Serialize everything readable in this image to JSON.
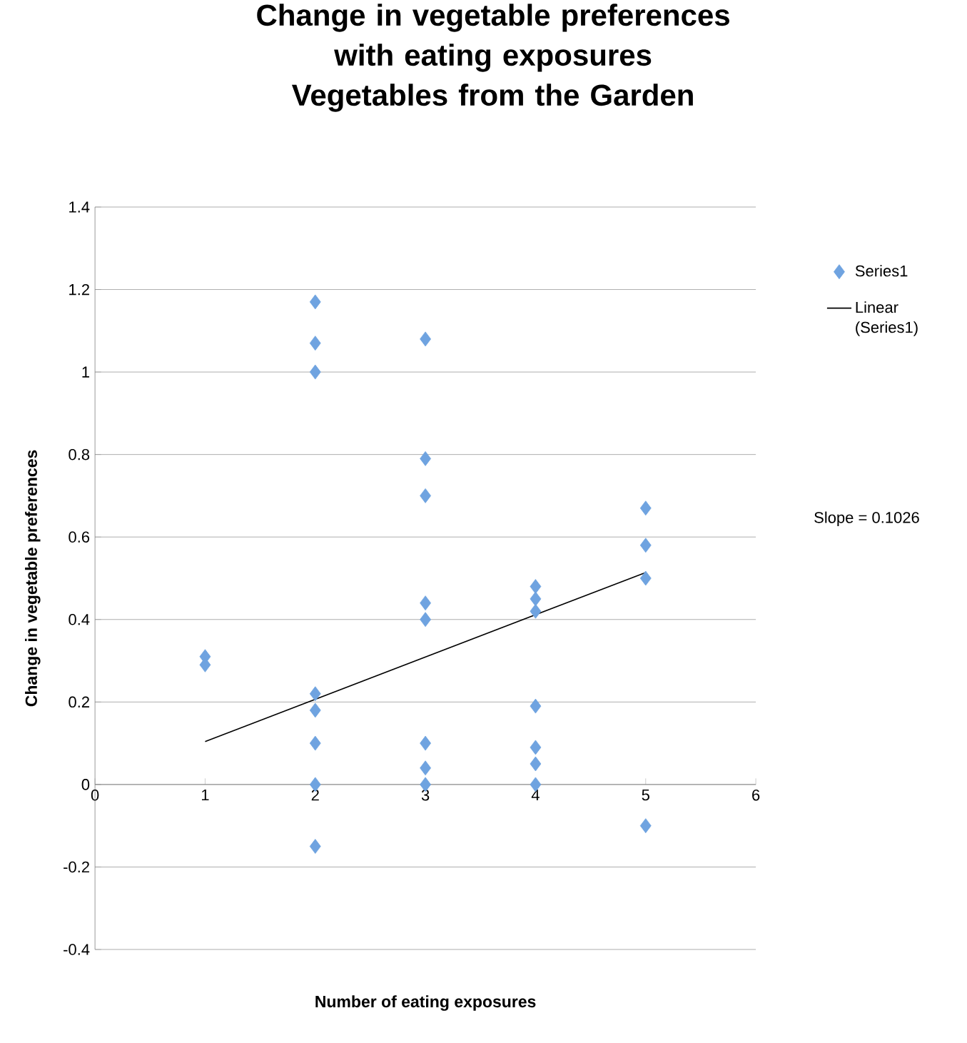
{
  "chart_data": {
    "type": "scatter",
    "title": "Change in vegetable preferences with eating exposures",
    "subtitle": "Vegetables from the Garden",
    "xlabel": "Number of eating exposures",
    "ylabel": "Change in vegetable preferences",
    "xlim": [
      0,
      6
    ],
    "xticks": [
      0,
      1,
      2,
      3,
      4,
      5,
      6
    ],
    "ylim": [
      -0.4,
      1.4
    ],
    "yticks": [
      -0.4,
      -0.2,
      0,
      0.2,
      0.4,
      0.6,
      0.8,
      1,
      1.2,
      1.4
    ],
    "grid": "y",
    "legend": "right",
    "marker": "diamond",
    "annotations": [
      "Slope = 0.1026"
    ],
    "series": [
      {
        "name": "Series1",
        "color": "#6fa3e0",
        "x": [
          1,
          1,
          2,
          2,
          2,
          2,
          2,
          2,
          2,
          2,
          3,
          3,
          3,
          3,
          3,
          3,
          3,
          3,
          4,
          4,
          4,
          4,
          4,
          4,
          4,
          5,
          5,
          5,
          5
        ],
        "values": [
          0.31,
          0.29,
          1.17,
          1.07,
          1.0,
          0.22,
          0.18,
          0.1,
          0,
          -0.15,
          1.08,
          0.79,
          0.7,
          0.44,
          0.4,
          0.1,
          0.04,
          0,
          0.48,
          0.45,
          0.42,
          0.19,
          0.09,
          0.05,
          0,
          0.67,
          0.58,
          0.5,
          -0.1
        ]
      },
      {
        "name": "Linear (Series1)",
        "type": "line",
        "color": "#000000",
        "marker": "none",
        "x": [
          1,
          5
        ],
        "values": [
          0.104,
          0.514
        ]
      }
    ]
  }
}
